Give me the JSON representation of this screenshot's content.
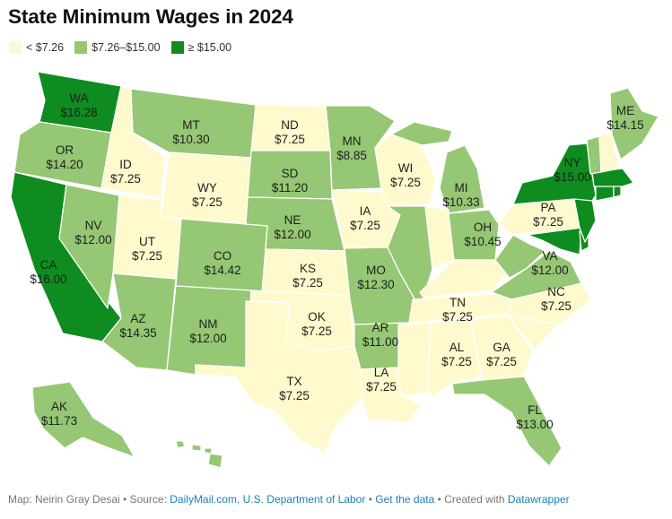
{
  "title": "State Minimum Wages in 2024",
  "legend": [
    {
      "label": "< $7.26",
      "color": "#fffacd"
    },
    {
      "label": "$7.26–$15.00",
      "color": "#96c774"
    },
    {
      "label": "≥ $15.00",
      "color": "#0e8c20"
    }
  ],
  "states": {
    "WA": {
      "abbr": "WA",
      "wage": "$16.28"
    },
    "OR": {
      "abbr": "OR",
      "wage": "$14.20"
    },
    "CA": {
      "abbr": "CA",
      "wage": "$16.00"
    },
    "ID": {
      "abbr": "ID",
      "wage": "$7.25"
    },
    "NV": {
      "abbr": "NV",
      "wage": "$12.00"
    },
    "MT": {
      "abbr": "MT",
      "wage": "$10.30"
    },
    "WY": {
      "abbr": "WY",
      "wage": "$7.25"
    },
    "UT": {
      "abbr": "UT",
      "wage": "$7.25"
    },
    "AZ": {
      "abbr": "AZ",
      "wage": "$14.35"
    },
    "CO": {
      "abbr": "CO",
      "wage": "$14.42"
    },
    "NM": {
      "abbr": "NM",
      "wage": "$12.00"
    },
    "ND": {
      "abbr": "ND",
      "wage": "$7.25"
    },
    "SD": {
      "abbr": "SD",
      "wage": "$11.20"
    },
    "NE": {
      "abbr": "NE",
      "wage": "$12.00"
    },
    "KS": {
      "abbr": "KS",
      "wage": "$7.25"
    },
    "OK": {
      "abbr": "OK",
      "wage": "$7.25"
    },
    "TX": {
      "abbr": "TX",
      "wage": "$7.25"
    },
    "MN": {
      "abbr": "MN",
      "wage": "$8.85"
    },
    "IA": {
      "abbr": "IA",
      "wage": "$7.25"
    },
    "MO": {
      "abbr": "MO",
      "wage": "$12.30"
    },
    "AR": {
      "abbr": "AR",
      "wage": "$11.00"
    },
    "LA": {
      "abbr": "LA",
      "wage": "$7.25"
    },
    "WI": {
      "abbr": "WI",
      "wage": "$7.25"
    },
    "MI": {
      "abbr": "MI",
      "wage": "$10.33"
    },
    "OH": {
      "abbr": "OH",
      "wage": "$10.45"
    },
    "TN": {
      "abbr": "TN",
      "wage": "$7.25"
    },
    "AL": {
      "abbr": "AL",
      "wage": "$7.25"
    },
    "GA": {
      "abbr": "GA",
      "wage": "$7.25"
    },
    "FL": {
      "abbr": "FL",
      "wage": "$13.00"
    },
    "NC": {
      "abbr": "NC",
      "wage": "$7.25"
    },
    "VA": {
      "abbr": "VA",
      "wage": "$12.00"
    },
    "PA": {
      "abbr": "PA",
      "wage": "$7.25"
    },
    "NY": {
      "abbr": "NY",
      "wage": "$15.00"
    },
    "ME": {
      "abbr": "ME",
      "wage": "$14.15"
    },
    "AK": {
      "abbr": "AK",
      "wage": "$11.73"
    }
  },
  "footer": {
    "prefix": "Map: Neirin Gray Desai • Source: ",
    "source_links": "DailyMail.com, U.S. Department of Labor",
    "sep1": " • ",
    "get_data": "Get the data",
    "sep2": " • Created with ",
    "tool": "Datawrapper"
  }
}
